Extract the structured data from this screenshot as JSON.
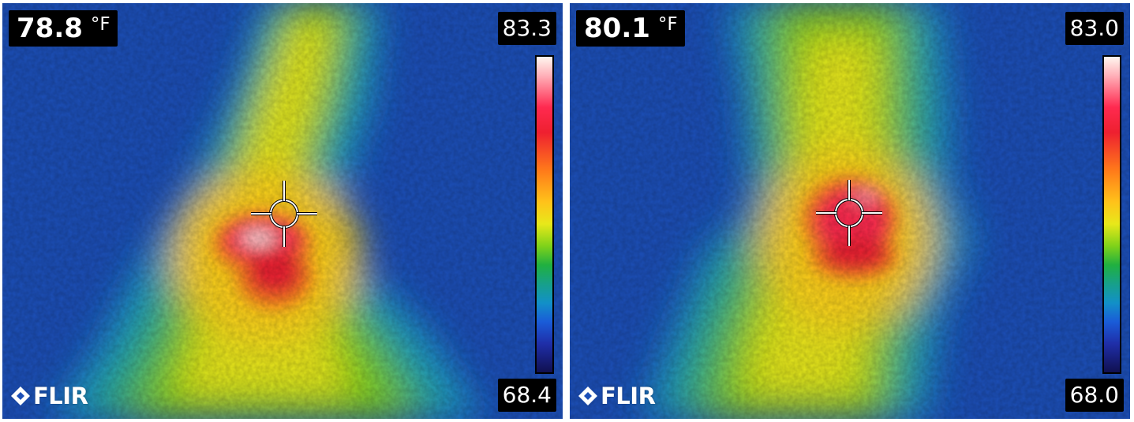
{
  "images": [
    {
      "spot_temperature": "78.8",
      "unit": "°F",
      "scale_max": "83.3",
      "scale_min": "68.4",
      "brand": "FLIR"
    },
    {
      "spot_temperature": "80.1",
      "unit": "°F",
      "scale_max": "83.0",
      "scale_min": "68.0",
      "brand": "FLIR"
    }
  ],
  "palette": {
    "cold": "#1c4fb8",
    "cool": "#1fa0c8",
    "mid": "#7fd21a",
    "warm": "#ffd21a",
    "hot": "#ff2a50",
    "hottest": "#fff7f0"
  }
}
